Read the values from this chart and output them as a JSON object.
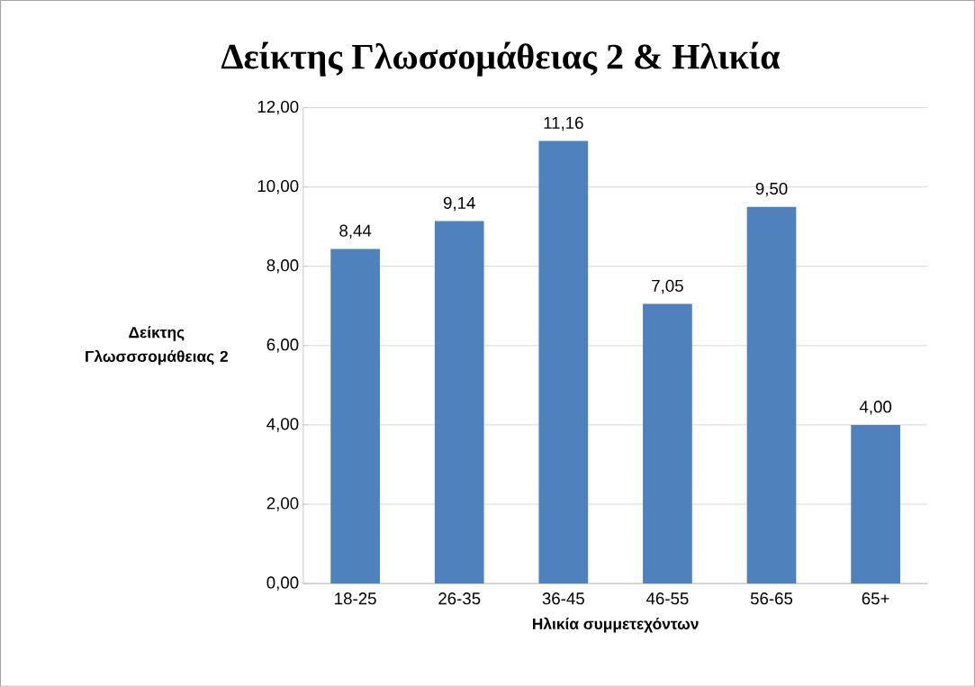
{
  "chart_data": {
    "type": "bar",
    "title": "Δείκτης Γλωσσομάθειας 2 & Ηλικία",
    "xlabel": "Ηλικία συμμετεχόντων",
    "ylabel": "Δείκτης Γλωσσσομάθειας 2",
    "categories": [
      "18-25",
      "26-35",
      "36-45",
      "46-55",
      "56-65",
      "65+"
    ],
    "values": [
      8.44,
      9.14,
      11.16,
      7.05,
      9.5,
      4.0
    ],
    "color": "#4f81bd",
    "ylim": [
      0,
      12
    ],
    "yticks": [
      {
        "value": 0,
        "label": "0,00"
      },
      {
        "value": 2,
        "label": "2,00"
      },
      {
        "value": 4,
        "label": "4,00"
      },
      {
        "value": 6,
        "label": "6,00"
      },
      {
        "value": 8,
        "label": "8,00"
      },
      {
        "value": 10,
        "label": "10,00"
      },
      {
        "value": 12,
        "label": "12,00"
      }
    ],
    "value_labels": [
      "8,44",
      "9,14",
      "11,16",
      "7,05",
      "9,50",
      "4,00"
    ],
    "grid": "y"
  }
}
